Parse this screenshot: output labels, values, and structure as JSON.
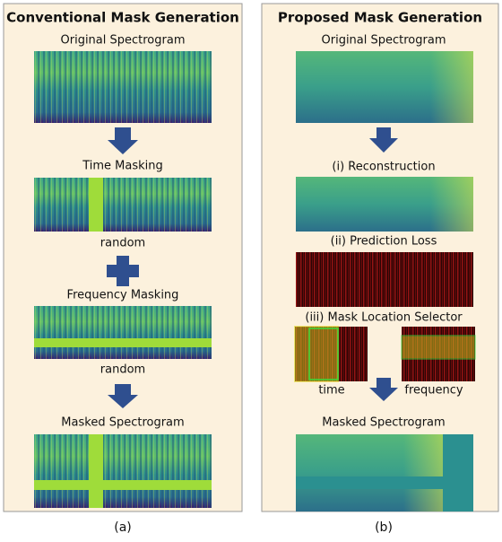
{
  "panels": [
    {
      "title": "Conventional Mask Generation",
      "labels": [
        "Original Spectrogram",
        "Time Masking",
        "random",
        "Frequency Masking",
        "random",
        "Masked Spectrogram"
      ],
      "caption": "(a)"
    },
    {
      "title": "Proposed Mask Generation",
      "labels": [
        "Original Spectrogram",
        "(i) Reconstruction",
        "(ii) Prediction Loss",
        "(iii) Mask Location Selector",
        "time",
        "frequency",
        "Masked Spectrogram"
      ],
      "caption": "(b)"
    }
  ]
}
